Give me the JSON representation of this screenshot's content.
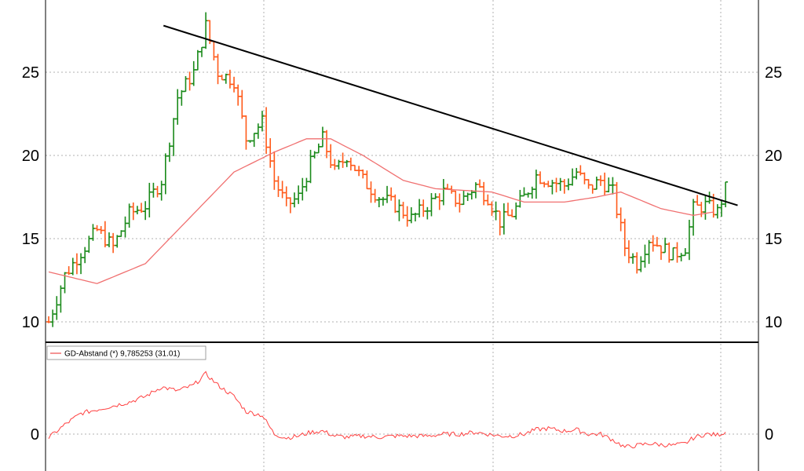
{
  "chart_data": [
    {
      "type": "ohlc",
      "panel": "price",
      "ylim": [
        9,
        29
      ],
      "y_ticks": [
        "10",
        "15",
        "20",
        "25"
      ],
      "grid": true,
      "colors": {
        "up": "#1a8a1a",
        "down": "#ff5a1a",
        "moving_average": "#f07070",
        "trendline": "#000000"
      },
      "price_path": [
        [
          0,
          10
        ],
        [
          4,
          12.8
        ],
        [
          8,
          14.2
        ],
        [
          12,
          15.5
        ],
        [
          16,
          14.5
        ],
        [
          20,
          16.5
        ],
        [
          24,
          17.0
        ],
        [
          28,
          18.5
        ],
        [
          32,
          23.5
        ],
        [
          36,
          25.0
        ],
        [
          39,
          27.8
        ],
        [
          42,
          25.0
        ],
        [
          46,
          24.5
        ],
        [
          49,
          21.0
        ],
        [
          53,
          22.0
        ],
        [
          56,
          18.5
        ],
        [
          59,
          17.0
        ],
        [
          62,
          17.5
        ],
        [
          65,
          19.5
        ],
        [
          68,
          21.0
        ],
        [
          71,
          19.0
        ],
        [
          74,
          20.0
        ],
        [
          78,
          18.5
        ],
        [
          82,
          17.5
        ],
        [
          86,
          17.0
        ],
        [
          90,
          16.2
        ],
        [
          94,
          17.0
        ],
        [
          98,
          17.8
        ],
        [
          102,
          17.2
        ],
        [
          106,
          18.2
        ],
        [
          109,
          17.5
        ],
        [
          112,
          16.0
        ],
        [
          115,
          16.5
        ],
        [
          118,
          17.5
        ],
        [
          121,
          18.8
        ],
        [
          124,
          18.5
        ],
        [
          128,
          18.2
        ],
        [
          131,
          19.0
        ],
        [
          134,
          18.0
        ],
        [
          137,
          18.5
        ],
        [
          140,
          17.8
        ],
        [
          143,
          14.5
        ],
        [
          146,
          13.5
        ],
        [
          149,
          15.0
        ],
        [
          152,
          14.5
        ],
        [
          155,
          14.0
        ],
        [
          158,
          14.5
        ],
        [
          160,
          16.8
        ],
        [
          163,
          17.0
        ],
        [
          166,
          16.6
        ],
        [
          168,
          18.0
        ]
      ],
      "moving_average_path": [
        [
          0,
          13.0
        ],
        [
          12,
          12.3
        ],
        [
          24,
          13.5
        ],
        [
          36,
          16.5
        ],
        [
          46,
          19.0
        ],
        [
          56,
          20.2
        ],
        [
          64,
          21.0
        ],
        [
          70,
          21.0
        ],
        [
          78,
          20.0
        ],
        [
          88,
          18.5
        ],
        [
          96,
          18.0
        ],
        [
          110,
          17.8
        ],
        [
          118,
          17.2
        ],
        [
          128,
          17.2
        ],
        [
          136,
          17.5
        ],
        [
          142,
          17.8
        ],
        [
          152,
          16.8
        ],
        [
          160,
          16.4
        ],
        [
          165,
          16.6
        ]
      ],
      "trendline": {
        "from": [
          28.5,
          27.8
        ],
        "to": [
          171,
          17.0
        ]
      }
    },
    {
      "type": "line",
      "panel": "indicator",
      "legend": [
        "GD-Abstand (*) 9,785253 (31.01)"
      ],
      "y_ticks": [
        "0"
      ],
      "ylim": [
        -10,
        17
      ],
      "grid": true,
      "series_path": [
        [
          0,
          -1.0
        ],
        [
          4,
          2.5
        ],
        [
          8,
          5.5
        ],
        [
          12,
          6.5
        ],
        [
          16,
          7.5
        ],
        [
          20,
          8.5
        ],
        [
          24,
          10.0
        ],
        [
          28,
          12.5
        ],
        [
          32,
          11.5
        ],
        [
          36,
          13.0
        ],
        [
          39,
          16.0
        ],
        [
          42,
          13.0
        ],
        [
          46,
          10.0
        ],
        [
          49,
          6.0
        ],
        [
          53,
          5.0
        ],
        [
          56,
          0
        ],
        [
          59,
          -1.0
        ],
        [
          62,
          -0.5
        ],
        [
          65,
          0.5
        ],
        [
          68,
          0.8
        ],
        [
          71,
          -0.5
        ],
        [
          74,
          -0.8
        ],
        [
          78,
          -0.5
        ],
        [
          82,
          -0.8
        ],
        [
          86,
          -0.5
        ],
        [
          90,
          -0.5
        ],
        [
          94,
          -0.5
        ],
        [
          98,
          0
        ],
        [
          102,
          0
        ],
        [
          106,
          0.5
        ],
        [
          109,
          0
        ],
        [
          112,
          -0.5
        ],
        [
          115,
          -0.5
        ],
        [
          118,
          0
        ],
        [
          121,
          1.2
        ],
        [
          124,
          1.5
        ],
        [
          128,
          0.8
        ],
        [
          131,
          1.2
        ],
        [
          134,
          0
        ],
        [
          137,
          0
        ],
        [
          140,
          -1.5
        ],
        [
          143,
          -3.5
        ],
        [
          146,
          -3.0
        ],
        [
          149,
          -2.5
        ],
        [
          152,
          -2.8
        ],
        [
          155,
          -3.0
        ],
        [
          158,
          -2.5
        ],
        [
          160,
          -1.0
        ],
        [
          163,
          0
        ],
        [
          166,
          -0.2
        ],
        [
          168,
          0.5
        ]
      ]
    }
  ]
}
